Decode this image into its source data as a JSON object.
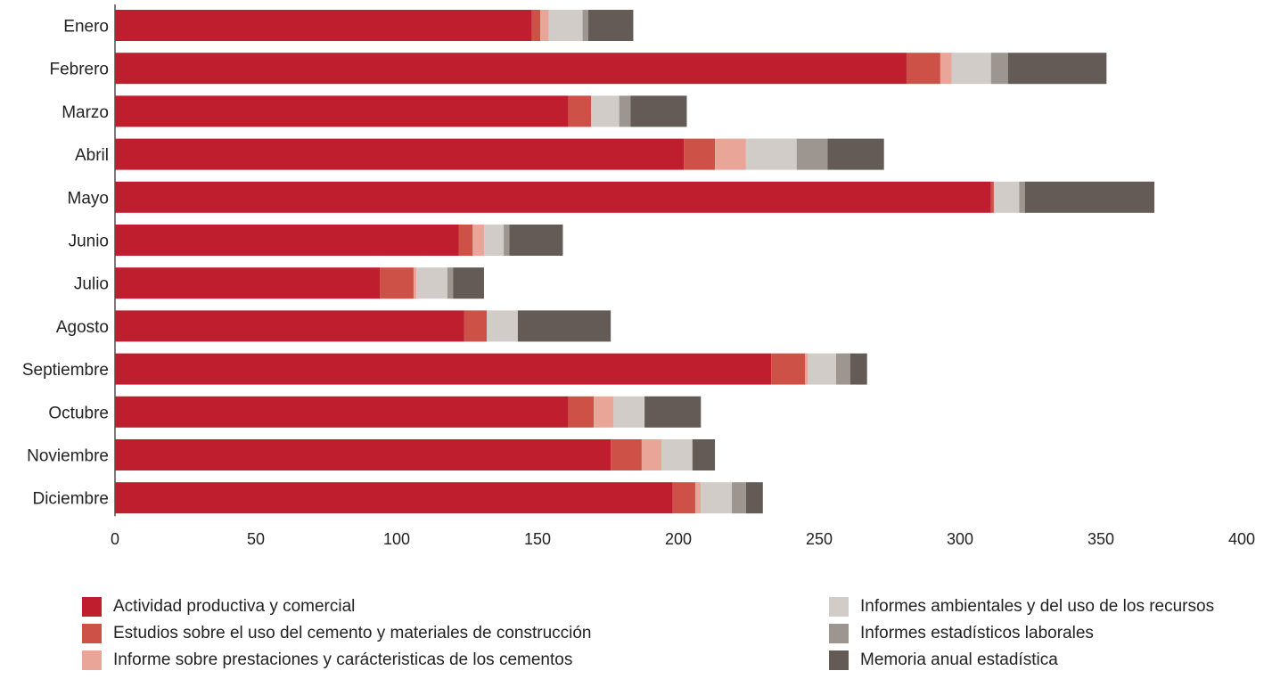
{
  "chart_data": {
    "type": "bar",
    "orientation": "horizontal",
    "stacked": true,
    "title": "",
    "xlabel": "",
    "ylabel": "",
    "xlim": [
      0,
      400
    ],
    "x_ticks": [
      0,
      50,
      100,
      150,
      200,
      250,
      300,
      350,
      400
    ],
    "grid": false,
    "legend_position": "bottom",
    "categories": [
      "Enero",
      "Febrero",
      "Marzo",
      "Abril",
      "Mayo",
      "Junio",
      "Julio",
      "Agosto",
      "Septiembre",
      "Octubre",
      "Noviembre",
      "Diciembre"
    ],
    "series": [
      {
        "name": "Actividad productiva y comercial",
        "color": "#BE1E2D",
        "values": [
          148,
          281,
          161,
          202,
          311,
          122,
          94,
          124,
          233,
          161,
          176,
          198
        ]
      },
      {
        "name": "Estudios sobre el uso del cemento y materiales de construcción",
        "color": "#CD5147",
        "values": [
          3,
          12,
          8,
          11,
          1,
          5,
          12,
          8,
          12,
          9,
          11,
          8
        ]
      },
      {
        "name": "Informe sobre prestaciones y carácteristicas de los cementos",
        "color": "#E8A598",
        "values": [
          3,
          4,
          0,
          11,
          0,
          4,
          1,
          0,
          1,
          7,
          7,
          2
        ]
      },
      {
        "name": "Informes ambientales y del uso de los recursos",
        "color": "#D1CCC8",
        "values": [
          12,
          14,
          10,
          18,
          9,
          7,
          11,
          11,
          10,
          11,
          11,
          11
        ]
      },
      {
        "name": "Informes estadísticos laborales",
        "color": "#9D958F",
        "values": [
          2,
          6,
          4,
          11,
          2,
          2,
          2,
          0,
          5,
          0,
          0,
          5
        ]
      },
      {
        "name": "Memoria anual estadística",
        "color": "#645B56",
        "values": [
          16,
          35,
          20,
          20,
          46,
          19,
          11,
          33,
          6,
          20,
          8,
          6
        ]
      }
    ]
  }
}
